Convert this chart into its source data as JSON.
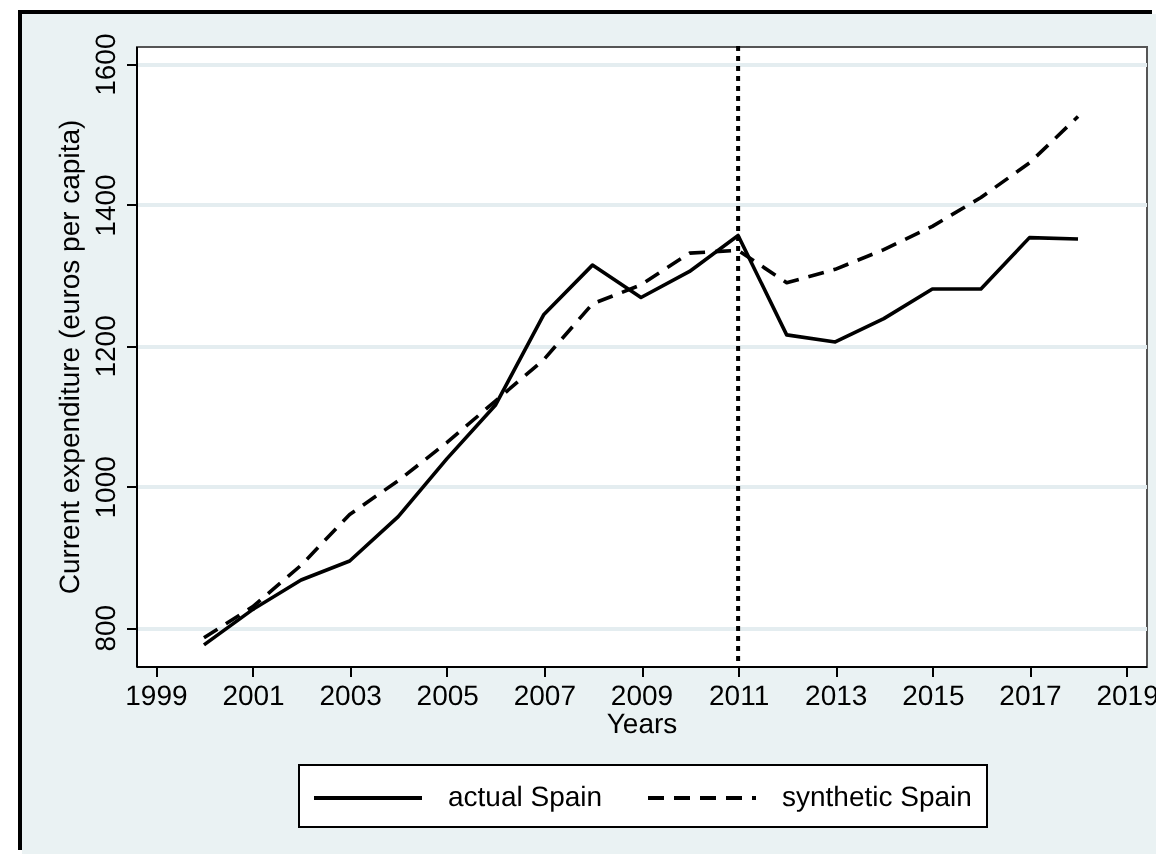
{
  "chart_data": {
    "type": "line",
    "xlabel": "Years",
    "ylabel": "Current expenditure (euros per capita)",
    "x": [
      2000,
      2001,
      2002,
      2003,
      2004,
      2005,
      2006,
      2007,
      2008,
      2009,
      2010,
      2011,
      2012,
      2013,
      2014,
      2015,
      2016,
      2017,
      2018
    ],
    "series": [
      {
        "name": "actual Spain",
        "color": "#000000",
        "line_style": "solid",
        "values": [
          775,
          825,
          867,
          894,
          957,
          1039,
          1115,
          1244,
          1314,
          1268,
          1305,
          1356,
          1215,
          1205,
          1238,
          1280,
          1280,
          1353,
          1351
        ]
      },
      {
        "name": "synthetic Spain",
        "color": "#000000",
        "line_style": "dashed",
        "values": [
          785,
          829,
          888,
          960,
          1008,
          1062,
          1121,
          1180,
          1259,
          1286,
          1331,
          1335,
          1289,
          1308,
          1336,
          1369,
          1410,
          1459,
          1525
        ]
      }
    ],
    "xlim": [
      1998.6,
      2019.4
    ],
    "ylim": [
      745,
      1625
    ],
    "xticks": [
      1999,
      2001,
      2003,
      2005,
      2007,
      2009,
      2011,
      2013,
      2015,
      2017,
      2019
    ],
    "yticks": [
      800,
      1000,
      1200,
      1400,
      1600
    ],
    "grid": "y",
    "legend": "bottom",
    "ref_lines": [
      {
        "axis": "x",
        "value": 2011,
        "color": "#000000",
        "line_style": "dotted"
      }
    ]
  }
}
